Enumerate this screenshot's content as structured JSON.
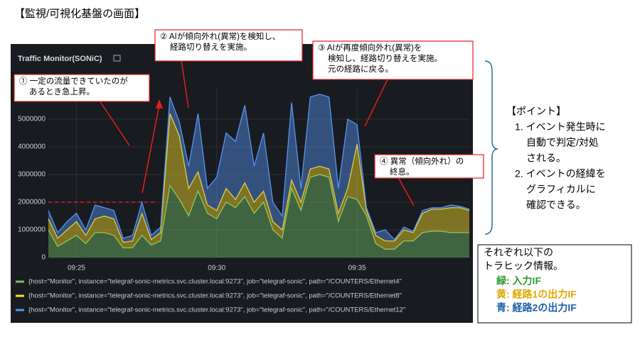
{
  "page_title": "【監視/可視化基盤の画面】",
  "chart_data": {
    "type": "area",
    "stacked": true,
    "grid": true,
    "title": "Traffic Monitor(SONiC)",
    "categories": [
      null,
      null,
      null,
      "09:25",
      null,
      null,
      null,
      null,
      null,
      null,
      null,
      null,
      null,
      null,
      null,
      null,
      null,
      null,
      "09:30",
      null,
      null,
      null,
      null,
      null,
      null,
      null,
      null,
      null,
      null,
      null,
      null,
      null,
      null,
      "09:35",
      null,
      null,
      null,
      null,
      null,
      null,
      null,
      null,
      null,
      null,
      null,
      null
    ],
    "series": [
      {
        "name": "{host=\"Monitor\", instance=\"telegraf-sonic-metrics.svc.cluster.local:9273\", job=\"telegraf-sonic\", path=\"/COUNTERS/Ethernet4\"",
        "color": "#73bf69",
        "values": [
          1000000,
          400000,
          600000,
          800000,
          500000,
          900000,
          900000,
          800000,
          350000,
          350000,
          800000,
          450000,
          600000,
          2600000,
          2100000,
          1500000,
          2400000,
          1600000,
          1400000,
          2000000,
          1800000,
          2200000,
          1600000,
          2000000,
          1000000,
          700000,
          2500000,
          1700000,
          2900000,
          3000000,
          2900000,
          1300000,
          2200000,
          2100000,
          1500000,
          500000,
          300000,
          300000,
          600000,
          600000,
          900000,
          950000,
          950000,
          900000,
          900000,
          900000
        ]
      },
      {
        "name": "{host=\"Monitor\", instance=\"telegraf-sonic-metrics.svc.cluster.local:9273\", job=\"telegraf-sonic\", path=\"/COUNTERS/Ethernet8\"",
        "color": "#fade2a",
        "values": [
          400000,
          300000,
          400000,
          500000,
          300000,
          500000,
          600000,
          600000,
          200000,
          250000,
          800000,
          200000,
          300000,
          2600000,
          2300000,
          1000000,
          700000,
          300000,
          300000,
          500000,
          300000,
          500000,
          400000,
          400000,
          300000,
          300000,
          300000,
          300000,
          300000,
          300000,
          300000,
          300000,
          300000,
          2000000,
          200000,
          300000,
          300000,
          300000,
          400000,
          300000,
          700000,
          800000,
          800000,
          900000,
          900000,
          800000
        ]
      },
      {
        "name": "{host=\"Monitor\", instance=\"telegraf-sonic-metrics.svc.cluster.local:9273\", job=\"telegraf-sonic\", path=\"/COUNTERS/Ethernet12\"",
        "color": "#5794f2",
        "values": [
          300000,
          200000,
          300000,
          300000,
          200000,
          500000,
          300000,
          300000,
          150000,
          200000,
          400000,
          150000,
          200000,
          600000,
          500000,
          800000,
          2100000,
          600000,
          1200000,
          2000000,
          2100000,
          2800000,
          1300000,
          2100000,
          700000,
          500000,
          2800000,
          500000,
          2600000,
          2600000,
          2600000,
          900000,
          2500000,
          700000,
          100000,
          100000,
          400000,
          50000,
          100000,
          50000,
          100000,
          50000,
          50000,
          100000,
          50000,
          50000
        ]
      }
    ],
    "ylim": [
      0,
      6100000
    ],
    "yticks": [
      0,
      1000000,
      2000000,
      3000000,
      4000000,
      5000000
    ]
  },
  "callouts": [
    {
      "lines": [
        "① 一定の流量できていたのが",
        "あるとき急上昇。"
      ]
    },
    {
      "lines": [
        "② AIが傾向外れ(異常)を検知し、",
        "経路切り替えを実施。"
      ]
    },
    {
      "lines": [
        "③ AIが再度傾向外れ(異常)を",
        "検知し、経路切り替えを実施。",
        "元の経路に戻る。"
      ]
    },
    {
      "lines": [
        "④ 異常（傾向外れ）の",
        "終息。"
      ]
    }
  ],
  "points": {
    "heading": "【ポイント】",
    "lines": [
      "1. イベント発生時に",
      "自動で判定/対処",
      "される。",
      "2. イベントの経緯を",
      "グラフィカルに",
      "確認できる。"
    ]
  },
  "legend_note": {
    "lines": [
      "それぞれ以下の",
      "トラヒック情報。"
    ],
    "items": [
      {
        "text": "緑: 入力IF",
        "color": "#2e9b2e"
      },
      {
        "text": "黄: 経路1の出力IF",
        "color": "#e0a800"
      },
      {
        "text": "青: 経路2の出力IF",
        "color": "#1f5fa8"
      }
    ]
  }
}
